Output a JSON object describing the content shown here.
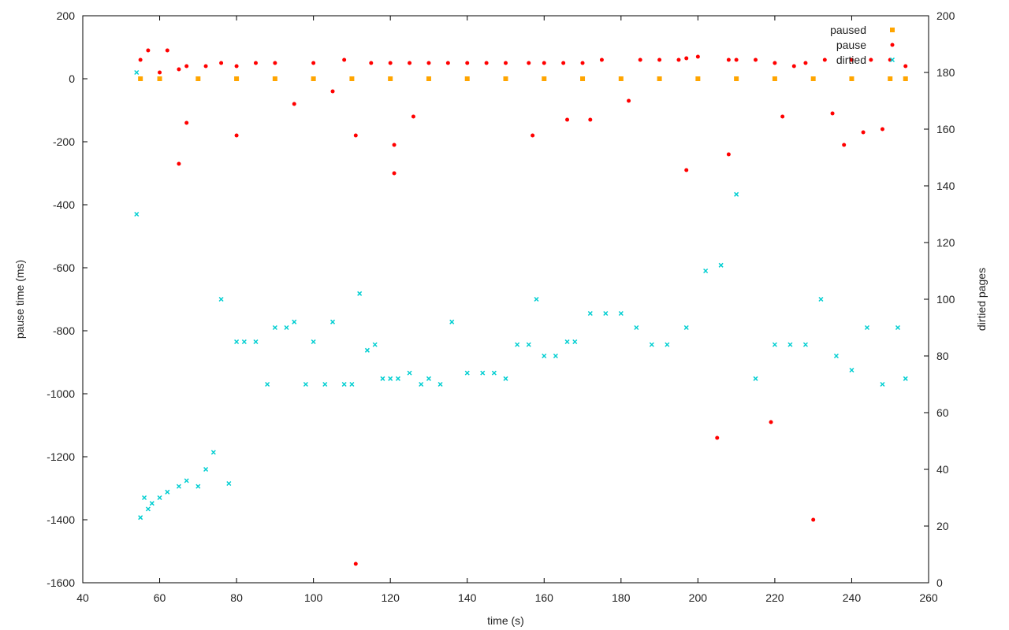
{
  "chart_data": {
    "type": "scatter",
    "title": "",
    "xlabel": "time (s)",
    "ylabel": "pause time (ms)",
    "y2label": "dirtied pages",
    "xlim": [
      40,
      260
    ],
    "ylim": [
      -1600,
      200
    ],
    "y2lim": [
      0,
      200
    ],
    "x_ticks": [
      40,
      60,
      80,
      100,
      120,
      140,
      160,
      180,
      200,
      220,
      240,
      260
    ],
    "y_ticks": [
      200,
      0,
      -200,
      -400,
      -600,
      -800,
      -1000,
      -1200,
      -1400,
      -1600
    ],
    "y2_ticks": [
      200,
      180,
      160,
      140,
      120,
      100,
      80,
      60,
      40,
      20,
      0
    ],
    "grid": false,
    "legend_position": "top-right",
    "colors": {
      "paused": "#FFA500",
      "pause": "#FF0000",
      "dirtied": "#00CED1"
    },
    "legend": [
      "paused",
      "pause",
      "dirtied"
    ],
    "series": [
      {
        "name": "paused",
        "axis": "y",
        "marker": "square",
        "x": [
          55,
          60,
          70,
          80,
          90,
          100,
          110,
          120,
          130,
          140,
          150,
          160,
          170,
          180,
          190,
          200,
          210,
          220,
          230,
          240,
          250,
          254
        ],
        "y": [
          0,
          0,
          0,
          0,
          0,
          0,
          0,
          0,
          0,
          0,
          0,
          0,
          0,
          0,
          0,
          0,
          0,
          0,
          0,
          0,
          0,
          0
        ]
      },
      {
        "name": "pause",
        "axis": "y",
        "marker": "dot",
        "x": [
          55,
          57,
          60,
          62,
          65,
          65,
          67,
          67,
          72,
          76,
          80,
          80,
          85,
          90,
          95,
          100,
          105,
          108,
          111,
          111,
          115,
          120,
          121,
          121,
          125,
          126,
          130,
          135,
          140,
          145,
          150,
          156,
          157,
          160,
          165,
          166,
          170,
          172,
          175,
          182,
          185,
          190,
          195,
          197,
          197,
          200,
          205,
          208,
          208,
          210,
          215,
          219,
          220,
          222,
          225,
          228,
          230,
          233,
          235,
          238,
          240,
          243,
          245,
          248,
          250,
          254
        ],
        "y": [
          60,
          90,
          20,
          90,
          30,
          -270,
          40,
          -140,
          40,
          50,
          40,
          -180,
          50,
          50,
          -80,
          50,
          -40,
          60,
          -180,
          -1540,
          50,
          50,
          -210,
          -300,
          50,
          -120,
          50,
          50,
          50,
          50,
          50,
          50,
          -180,
          50,
          50,
          -130,
          50,
          -130,
          60,
          -70,
          60,
          60,
          60,
          65,
          -290,
          70,
          -1140,
          60,
          -240,
          60,
          60,
          -1090,
          50,
          -120,
          40,
          50,
          -1400,
          60,
          -110,
          -210,
          60,
          -170,
          60,
          -160,
          60,
          40
        ]
      },
      {
        "name": "dirtied",
        "axis": "y2",
        "marker": "cross",
        "x": [
          54,
          54,
          55,
          56,
          57,
          58,
          60,
          62,
          65,
          67,
          70,
          72,
          74,
          76,
          78,
          80,
          82,
          85,
          88,
          90,
          93,
          95,
          98,
          100,
          103,
          105,
          108,
          110,
          112,
          114,
          116,
          118,
          120,
          122,
          125,
          128,
          130,
          133,
          136,
          140,
          144,
          147,
          150,
          153,
          156,
          158,
          160,
          163,
          166,
          168,
          172,
          176,
          180,
          184,
          188,
          192,
          197,
          202,
          206,
          210,
          215,
          220,
          224,
          228,
          232,
          236,
          240,
          244,
          248,
          252,
          254
        ],
        "y": [
          180,
          130,
          23,
          30,
          26,
          28,
          30,
          32,
          34,
          36,
          34,
          40,
          46,
          100,
          35,
          85,
          85,
          85,
          70,
          90,
          90,
          92,
          70,
          85,
          70,
          92,
          70,
          70,
          102,
          82,
          84,
          72,
          72,
          72,
          74,
          70,
          72,
          70,
          92,
          74,
          74,
          74,
          72,
          84,
          84,
          100,
          80,
          80,
          85,
          85,
          95,
          95,
          95,
          90,
          84,
          84,
          90,
          110,
          112,
          137,
          72,
          84,
          84,
          84,
          100,
          80,
          75,
          90,
          70,
          90,
          72
        ]
      }
    ]
  }
}
